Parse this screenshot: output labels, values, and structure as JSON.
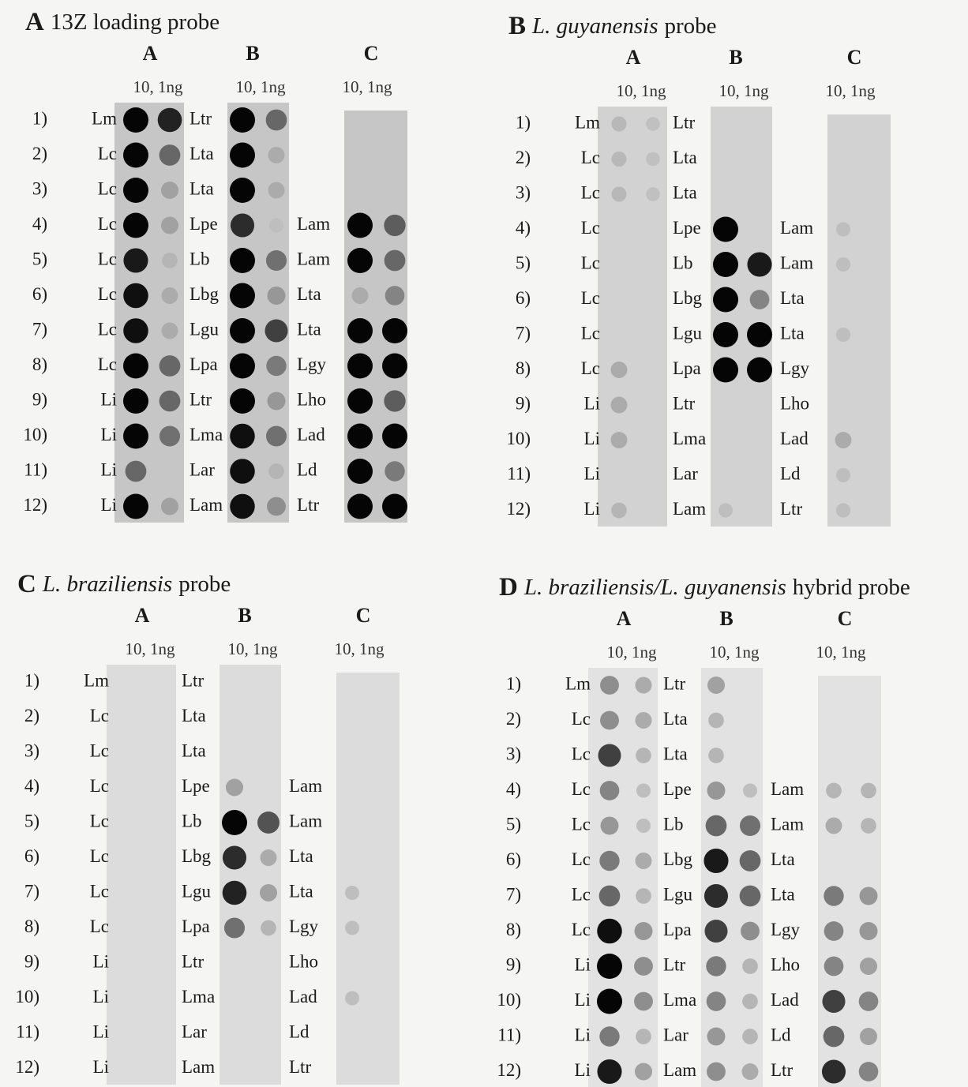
{
  "panels": [
    {
      "letter": "A",
      "title": "13Z loading probe",
      "columns": [
        {
          "label": "A",
          "amounts": "10, 1ng"
        },
        {
          "label": "B",
          "amounts": "10, 1ng"
        },
        {
          "label": "C",
          "amounts": "10, 1ng"
        }
      ],
      "rows": [
        "1)",
        "2)",
        "3)",
        "4)",
        "5)",
        "6)",
        "7)",
        "8)",
        "9)",
        "10)",
        "11)",
        "12)"
      ],
      "left_labels": [
        "Lm",
        "Lc",
        "Lc",
        "Lc",
        "Lc",
        "Lc",
        "Lc",
        "Lc",
        "Li",
        "Li",
        "Li",
        "Li"
      ],
      "middle_labels": [
        "Ltr",
        "Lta",
        "Lta",
        "Lpe",
        "Lb",
        "Lbg",
        "Lgu",
        "Lpa",
        "Ltr",
        "Lma",
        "Lar",
        "Lam"
      ],
      "right_labels": [
        null,
        null,
        null,
        "Lam",
        "Lam",
        "Lta",
        "Lta",
        "Lgy",
        "Lho",
        "Lad",
        "Ld",
        "Ltr"
      ]
    },
    {
      "letter": "B",
      "species": "L. guyanensis",
      "title": "probe",
      "columns": [
        {
          "label": "A",
          "amounts": "10, 1ng"
        },
        {
          "label": "B",
          "amounts": "10, 1ng"
        },
        {
          "label": "C",
          "amounts": "10, 1ng"
        }
      ],
      "rows": [
        "1)",
        "2)",
        "3)",
        "4)",
        "5)",
        "6)",
        "7)",
        "8)",
        "9)",
        "10)",
        "11)",
        "12)"
      ],
      "left_labels": [
        "Lm",
        "Lc",
        "Lc",
        "Lc",
        "Lc",
        "Lc",
        "Lc",
        "Lc",
        "Li",
        "Li",
        "Li",
        "Li"
      ],
      "middle_labels": [
        "Ltr",
        "Lta",
        "Lta",
        "Lpe",
        "Lb",
        "Lbg",
        "Lgu",
        "Lpa",
        "Ltr",
        "Lma",
        "Lar",
        "Lam"
      ],
      "right_labels": [
        null,
        null,
        null,
        "Lam",
        "Lam",
        "Lta",
        "Lta",
        "Lgy",
        "Lho",
        "Lad",
        "Ld",
        "Ltr"
      ]
    },
    {
      "letter": "C",
      "species": "L. braziliensis",
      "title": "probe",
      "columns": [
        {
          "label": "A",
          "amounts": "10, 1ng"
        },
        {
          "label": "B",
          "amounts": "10, 1ng"
        },
        {
          "label": "C",
          "amounts": "10, 1ng"
        }
      ],
      "rows": [
        "1)",
        "2)",
        "3)",
        "4)",
        "5)",
        "6)",
        "7)",
        "8)",
        "9)",
        "10)",
        "11)",
        "12)"
      ],
      "left_labels": [
        "Lm",
        "Lc",
        "Lc",
        "Lc",
        "Lc",
        "Lc",
        "Lc",
        "Lc",
        "Li",
        "Li",
        "Li",
        "Li"
      ],
      "middle_labels": [
        "Ltr",
        "Lta",
        "Lta",
        "Lpe",
        "Lb",
        "Lbg",
        "Lgu",
        "Lpa",
        "Ltr",
        "Lma",
        "Lar",
        "Lam"
      ],
      "right_labels": [
        null,
        null,
        null,
        "Lam",
        "Lam",
        "Lta",
        "Lta",
        "Lgy",
        "Lho",
        "Lad",
        "Ld",
        "Ltr"
      ]
    },
    {
      "letter": "D",
      "species": "L. braziliensis/L. guyanensis",
      "title": "hybrid probe",
      "columns": [
        {
          "label": "A",
          "amounts": "10, 1ng"
        },
        {
          "label": "B",
          "amounts": "10, 1ng"
        },
        {
          "label": "C",
          "amounts": "10, 1ng"
        }
      ],
      "rows": [
        "1)",
        "2)",
        "3)",
        "4)",
        "5)",
        "6)",
        "7)",
        "8)",
        "9)",
        "10)",
        "11)",
        "12)"
      ],
      "left_labels": [
        "Lm",
        "Lc",
        "Lc",
        "Lc",
        "Lc",
        "Lc",
        "Lc",
        "Lc",
        "Li",
        "Li",
        "Li",
        "Li"
      ],
      "middle_labels": [
        "Ltr",
        "Lta",
        "Lta",
        "Lpe",
        "Lb",
        "Lbg",
        "Lgu",
        "Lpa",
        "Ltr",
        "Lma",
        "Lar",
        "Lam"
      ],
      "right_labels": [
        null,
        null,
        null,
        "Lam",
        "Lam",
        "Lta",
        "Lta",
        "Lgy",
        "Lho",
        "Lad",
        "Ld",
        "Ltr"
      ]
    }
  ]
}
